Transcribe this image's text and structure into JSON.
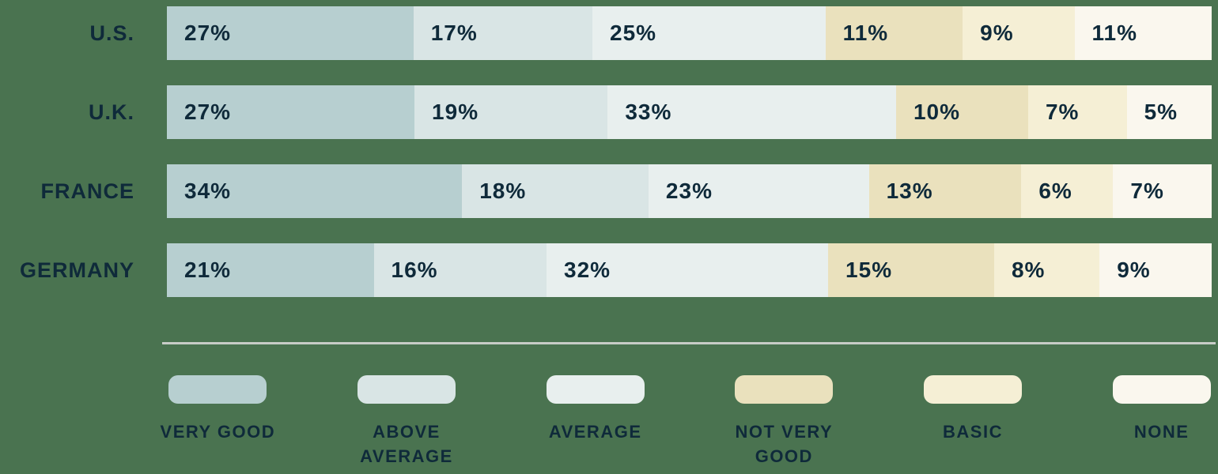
{
  "colors": {
    "background": "#4a7350",
    "text": "#0f2a3a",
    "divider": "#c7ccc7",
    "categories": [
      "#b7cfd0",
      "#d9e5e5",
      "#e8efee",
      "#eae1bd",
      "#f5efd5",
      "#faf7ee"
    ]
  },
  "chart_data": {
    "type": "bar",
    "orientation": "horizontal-stacked",
    "title": "",
    "value_suffix": "%",
    "legend_position": "bottom",
    "categories": [
      "VERY GOOD",
      "ABOVE AVERAGE",
      "AVERAGE",
      "NOT VERY GOOD",
      "BASIC",
      "NONE"
    ],
    "rows": [
      {
        "label": "U.S.",
        "values": [
          27,
          17,
          25,
          11,
          9,
          11
        ]
      },
      {
        "label": "U.K.",
        "values": [
          27,
          19,
          33,
          10,
          7,
          5
        ]
      },
      {
        "label": "FRANCE",
        "values": [
          34,
          18,
          23,
          13,
          6,
          7
        ]
      },
      {
        "label": "GERMANY",
        "values": [
          21,
          16,
          32,
          15,
          8,
          9
        ]
      }
    ]
  }
}
